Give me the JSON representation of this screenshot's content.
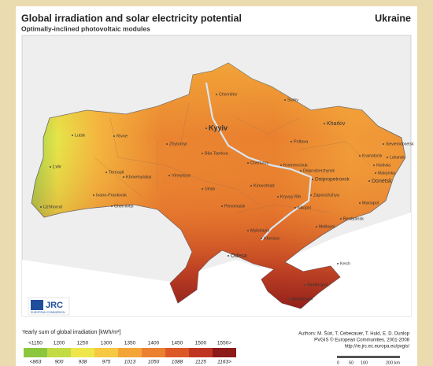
{
  "header": {
    "title": "Global irradiation and solar electricity potential",
    "subtitle": "Optimally-inclined photovoltaic modules",
    "country": "Ukraine"
  },
  "map": {
    "cities": [
      "Chernihiv",
      "Sumy",
      "Kharkiv",
      "Kyyiv",
      "Zhytomyr",
      "Rivne",
      "Lutsk",
      "Lviv",
      "Ternopil",
      "Khmelnytskyi",
      "Vinnytsya",
      "Ivano-Frankivsk",
      "Uzhhorod",
      "Chernivtsi",
      "Bila Tserkva",
      "Cherkasy",
      "Poltava",
      "Kremenchuk",
      "Kirovohrad",
      "Dnipropetrovsk",
      "Dniprodzerzhynsk",
      "Zaporizhzhya",
      "Donetsk",
      "Luhansk",
      "Makiyivka",
      "Sievierodonetsk",
      "Kramatorsk",
      "Horlivka",
      "Mariupol",
      "Kryvyy Rih",
      "Nikopol",
      "Berdyansk",
      "Melitopol",
      "Mykolayiv",
      "Kherson",
      "Odesa",
      "Pervomaisk",
      "Uman",
      "Simferopol",
      "Sevastopol",
      "Kerch"
    ]
  },
  "logo": {
    "name": "JRC",
    "org": "EUROPEAN COMMISSION"
  },
  "legend": {
    "title": "Yearly sum of global irradiation [kWh/m²]",
    "irradiation_labels": [
      "<1150",
      "1200",
      "1250",
      "1300",
      "1350",
      "1400",
      "1450",
      "1500",
      "1550>"
    ],
    "electricity_labels": [
      "<863",
      "900",
      "938",
      "975",
      "1013",
      "1050",
      "1088",
      "1125",
      "1163>"
    ],
    "colors": [
      "#8cc63f",
      "#c3dc45",
      "#eee64a",
      "#f7c842",
      "#f3a537",
      "#eb8030",
      "#dc5826",
      "#c03522",
      "#8d1a19"
    ]
  },
  "credits": {
    "authors": "Authors: M. Šúri, T. Cebecauer, T. Huld, E. D. Dunlop",
    "copyright": "PVGIS © European Communities, 2001-2008",
    "url": "http://re.jrc.ec.europa.eu/pvgis/"
  },
  "scale": {
    "labels": [
      "0",
      "50",
      "100",
      "200 km"
    ]
  }
}
